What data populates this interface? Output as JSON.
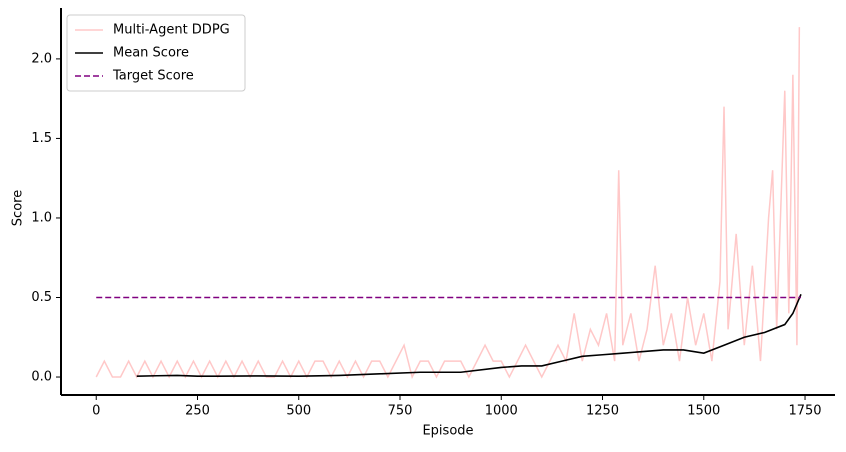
{
  "chart_data": {
    "type": "line",
    "x_label": "Episode",
    "y_label": "Score",
    "xlim": [
      -87,
      1824
    ],
    "ylim": [
      -0.113,
      2.32
    ],
    "xticks": [
      0,
      250,
      500,
      750,
      1000,
      1250,
      1500,
      1750
    ],
    "yticks": [
      {
        "value": 0,
        "label": "0.0"
      },
      0.5,
      {
        "value": 1,
        "label": "1.0"
      },
      1.5,
      {
        "value": 2,
        "label": "2.0"
      }
    ],
    "grid": false,
    "legend": "upper left",
    "series": [
      {
        "name": "Multi-Agent DDPG",
        "color": "#ffc8c8",
        "dash": false,
        "x": [
          0,
          20,
          40,
          60,
          80,
          100,
          120,
          140,
          160,
          180,
          200,
          220,
          240,
          260,
          280,
          300,
          320,
          340,
          360,
          380,
          400,
          420,
          440,
          460,
          480,
          500,
          520,
          540,
          560,
          580,
          600,
          620,
          640,
          660,
          680,
          700,
          720,
          740,
          760,
          780,
          800,
          820,
          840,
          860,
          880,
          900,
          920,
          940,
          960,
          980,
          1000,
          1020,
          1040,
          1060,
          1080,
          1100,
          1120,
          1140,
          1160,
          1180,
          1200,
          1220,
          1240,
          1260,
          1280,
          1290,
          1300,
          1320,
          1340,
          1360,
          1380,
          1400,
          1420,
          1440,
          1460,
          1480,
          1500,
          1520,
          1540,
          1550,
          1560,
          1580,
          1600,
          1620,
          1640,
          1660,
          1670,
          1680,
          1700,
          1710,
          1720,
          1730,
          1736
        ],
        "values": [
          0,
          0.1,
          0,
          0,
          0.1,
          0,
          0.1,
          0,
          0.1,
          0,
          0.1,
          0,
          0.1,
          0,
          0.1,
          0,
          0.1,
          0,
          0.1,
          0,
          0.1,
          0,
          0,
          0.1,
          0,
          0.1,
          0,
          0.1,
          0.1,
          0,
          0.1,
          0,
          0.1,
          0,
          0.1,
          0.1,
          0,
          0.1,
          0.2,
          0,
          0.1,
          0.1,
          0,
          0.1,
          0.1,
          0.1,
          0,
          0.1,
          0.2,
          0.1,
          0.1,
          0,
          0.1,
          0.2,
          0.1,
          0,
          0.1,
          0.2,
          0.1,
          0.4,
          0.1,
          0.3,
          0.2,
          0.4,
          0.1,
          1.3,
          0.2,
          0.4,
          0.1,
          0.3,
          0.7,
          0.2,
          0.4,
          0.1,
          0.5,
          0.2,
          0.4,
          0.1,
          0.6,
          1.7,
          0.3,
          0.9,
          0.2,
          0.7,
          0.1,
          1.0,
          1.3,
          0.3,
          1.8,
          0.4,
          1.9,
          0.2,
          2.2
        ]
      },
      {
        "name": "Mean Score",
        "color": "#000000",
        "dash": false,
        "x": [
          100,
          150,
          200,
          250,
          300,
          400,
          500,
          600,
          700,
          800,
          900,
          1000,
          1050,
          1100,
          1150,
          1200,
          1250,
          1300,
          1350,
          1400,
          1450,
          1500,
          1550,
          1600,
          1650,
          1700,
          1720,
          1740
        ],
        "values": [
          0.005,
          0.008,
          0.01,
          0.005,
          0.005,
          0.007,
          0.005,
          0.01,
          0.02,
          0.03,
          0.03,
          0.06,
          0.07,
          0.07,
          0.1,
          0.13,
          0.14,
          0.15,
          0.16,
          0.17,
          0.17,
          0.15,
          0.2,
          0.25,
          0.28,
          0.33,
          0.4,
          0.52
        ]
      },
      {
        "name": "Target Score",
        "color": "#800080",
        "dash": true,
        "x": [
          0,
          1740
        ],
        "values": [
          0.5,
          0.5
        ]
      }
    ]
  }
}
